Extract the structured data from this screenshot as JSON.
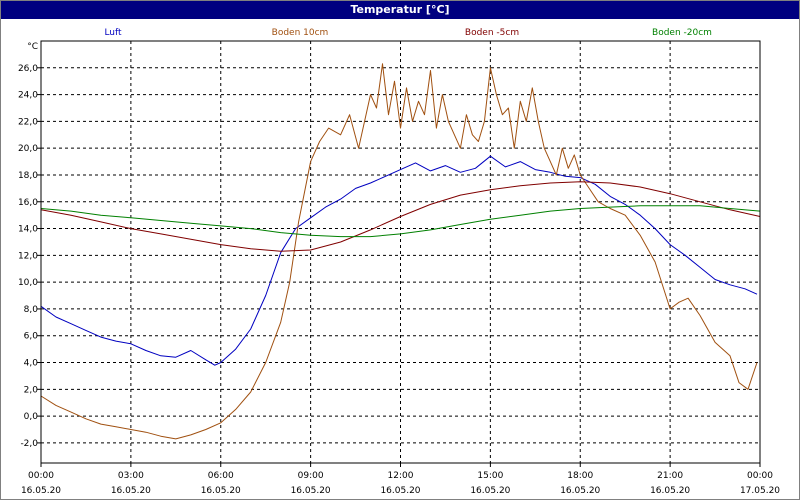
{
  "window": {
    "title": "Temperatur [°C]"
  },
  "chart_data": {
    "type": "line",
    "title": "Temperatur [°C]",
    "ylabel": "°C",
    "xlabel": "",
    "ylim": [
      -3.5,
      28
    ],
    "xlim": [
      0,
      24
    ],
    "grid": true,
    "legend_position": "top",
    "y_ticks": [
      "26,0",
      "24,0",
      "22,0",
      "20,0",
      "18,0",
      "16,0",
      "14,0",
      "12,0",
      "10,0",
      "8,0",
      "6,0",
      "4,0",
      "2,0",
      "0,0",
      "-2,0"
    ],
    "x_ticks": [
      {
        "time": "00:00",
        "date": "16.05.20"
      },
      {
        "time": "03:00",
        "date": "16.05.20"
      },
      {
        "time": "06:00",
        "date": "16.05.20"
      },
      {
        "time": "09:00",
        "date": "16.05.20"
      },
      {
        "time": "12:00",
        "date": "16.05.20"
      },
      {
        "time": "15:00",
        "date": "16.05.20"
      },
      {
        "time": "18:00",
        "date": "16.05.20"
      },
      {
        "time": "21:00",
        "date": "16.05.20"
      },
      {
        "time": "00:00",
        "date": "17.05.20"
      }
    ],
    "series": [
      {
        "name": "Luft",
        "color": "#0000c0",
        "x": [
          0,
          0.5,
          1,
          1.5,
          2,
          2.5,
          3,
          3.5,
          4,
          4.5,
          5,
          5.5,
          5.8,
          6,
          6.5,
          7,
          7.5,
          8,
          8.5,
          9,
          9.5,
          10,
          10.5,
          11,
          11.5,
          12,
          12.5,
          13,
          13.5,
          14,
          14.5,
          15,
          15.5,
          16,
          16.5,
          17,
          17.5,
          18,
          18.5,
          19,
          19.5,
          20,
          20.5,
          21,
          21.5,
          22,
          22.5,
          23,
          23.5,
          23.9
        ],
        "y": [
          8.2,
          7.4,
          6.9,
          6.4,
          5.9,
          5.6,
          5.4,
          4.9,
          4.5,
          4.4,
          4.9,
          4.2,
          3.8,
          4.0,
          5.0,
          6.5,
          9.0,
          12.2,
          14.0,
          14.8,
          15.6,
          16.2,
          17.0,
          17.4,
          17.9,
          18.4,
          18.9,
          18.3,
          18.7,
          18.2,
          18.5,
          19.4,
          18.6,
          19.0,
          18.4,
          18.2,
          17.9,
          17.8,
          17.3,
          16.4,
          15.8,
          15.0,
          14.0,
          12.8,
          12.0,
          11.1,
          10.2,
          9.8,
          9.5,
          9.1
        ]
      },
      {
        "name": "Boden 10cm",
        "color": "#a05010",
        "x": [
          0,
          0.5,
          1,
          1.5,
          2,
          2.5,
          3,
          3.5,
          4,
          4.5,
          5,
          5.5,
          6,
          6.5,
          7,
          7.5,
          8,
          8.3,
          8.6,
          9,
          9.3,
          9.6,
          10,
          10.3,
          10.6,
          11,
          11.2,
          11.4,
          11.6,
          11.8,
          12,
          12.2,
          12.4,
          12.6,
          12.8,
          13,
          13.2,
          13.4,
          13.6,
          13.8,
          14,
          14.2,
          14.4,
          14.6,
          14.8,
          15,
          15.2,
          15.4,
          15.6,
          15.8,
          16,
          16.2,
          16.4,
          16.6,
          16.8,
          17,
          17.2,
          17.4,
          17.6,
          17.8,
          18,
          18.3,
          18.6,
          19,
          19.5,
          20,
          20.5,
          21,
          21.3,
          21.6,
          22,
          22.5,
          23,
          23.3,
          23.6,
          23.9
        ],
        "y": [
          1.5,
          0.8,
          0.3,
          -0.2,
          -0.6,
          -0.8,
          -1.0,
          -1.2,
          -1.5,
          -1.7,
          -1.4,
          -1.0,
          -0.5,
          0.5,
          1.8,
          4.0,
          7.0,
          10.0,
          14.5,
          19.0,
          20.5,
          21.5,
          21.0,
          22.5,
          20.0,
          24.0,
          23.0,
          26.3,
          22.5,
          25.0,
          21.5,
          24.5,
          22.0,
          23.5,
          22.5,
          25.8,
          21.5,
          24.0,
          22.0,
          21.0,
          20.0,
          22.5,
          21.0,
          20.5,
          22.0,
          26.0,
          24.0,
          22.5,
          23.0,
          20.0,
          23.5,
          22.0,
          24.5,
          22.0,
          20.0,
          19.0,
          18.0,
          20.0,
          18.5,
          19.5,
          18.0,
          17.0,
          16.0,
          15.5,
          15.0,
          13.5,
          11.5,
          8.0,
          8.5,
          8.8,
          7.5,
          5.5,
          4.5,
          2.5,
          2.0,
          4.0
        ]
      },
      {
        "name": "Boden -5cm",
        "color": "#800000",
        "x": [
          0,
          1,
          2,
          3,
          4,
          5,
          6,
          7,
          8,
          9,
          10,
          11,
          12,
          13,
          14,
          15,
          16,
          17,
          18,
          19,
          20,
          21,
          22,
          23,
          24
        ],
        "y": [
          15.4,
          15.0,
          14.5,
          14.0,
          13.6,
          13.2,
          12.8,
          12.5,
          12.3,
          12.4,
          13.0,
          13.9,
          14.9,
          15.8,
          16.5,
          16.9,
          17.2,
          17.4,
          17.5,
          17.4,
          17.1,
          16.6,
          16.0,
          15.4,
          14.9
        ]
      },
      {
        "name": "Boden -20cm",
        "color": "#008000",
        "x": [
          0,
          1,
          2,
          3,
          4,
          5,
          6,
          7,
          8,
          9,
          10,
          11,
          12,
          13,
          14,
          15,
          16,
          17,
          18,
          19,
          20,
          21,
          22,
          23,
          24
        ],
        "y": [
          15.5,
          15.3,
          15.0,
          14.8,
          14.6,
          14.4,
          14.2,
          14.0,
          13.7,
          13.5,
          13.4,
          13.4,
          13.6,
          13.9,
          14.3,
          14.7,
          15.0,
          15.3,
          15.5,
          15.6,
          15.7,
          15.7,
          15.7,
          15.5,
          15.3
        ]
      }
    ]
  }
}
